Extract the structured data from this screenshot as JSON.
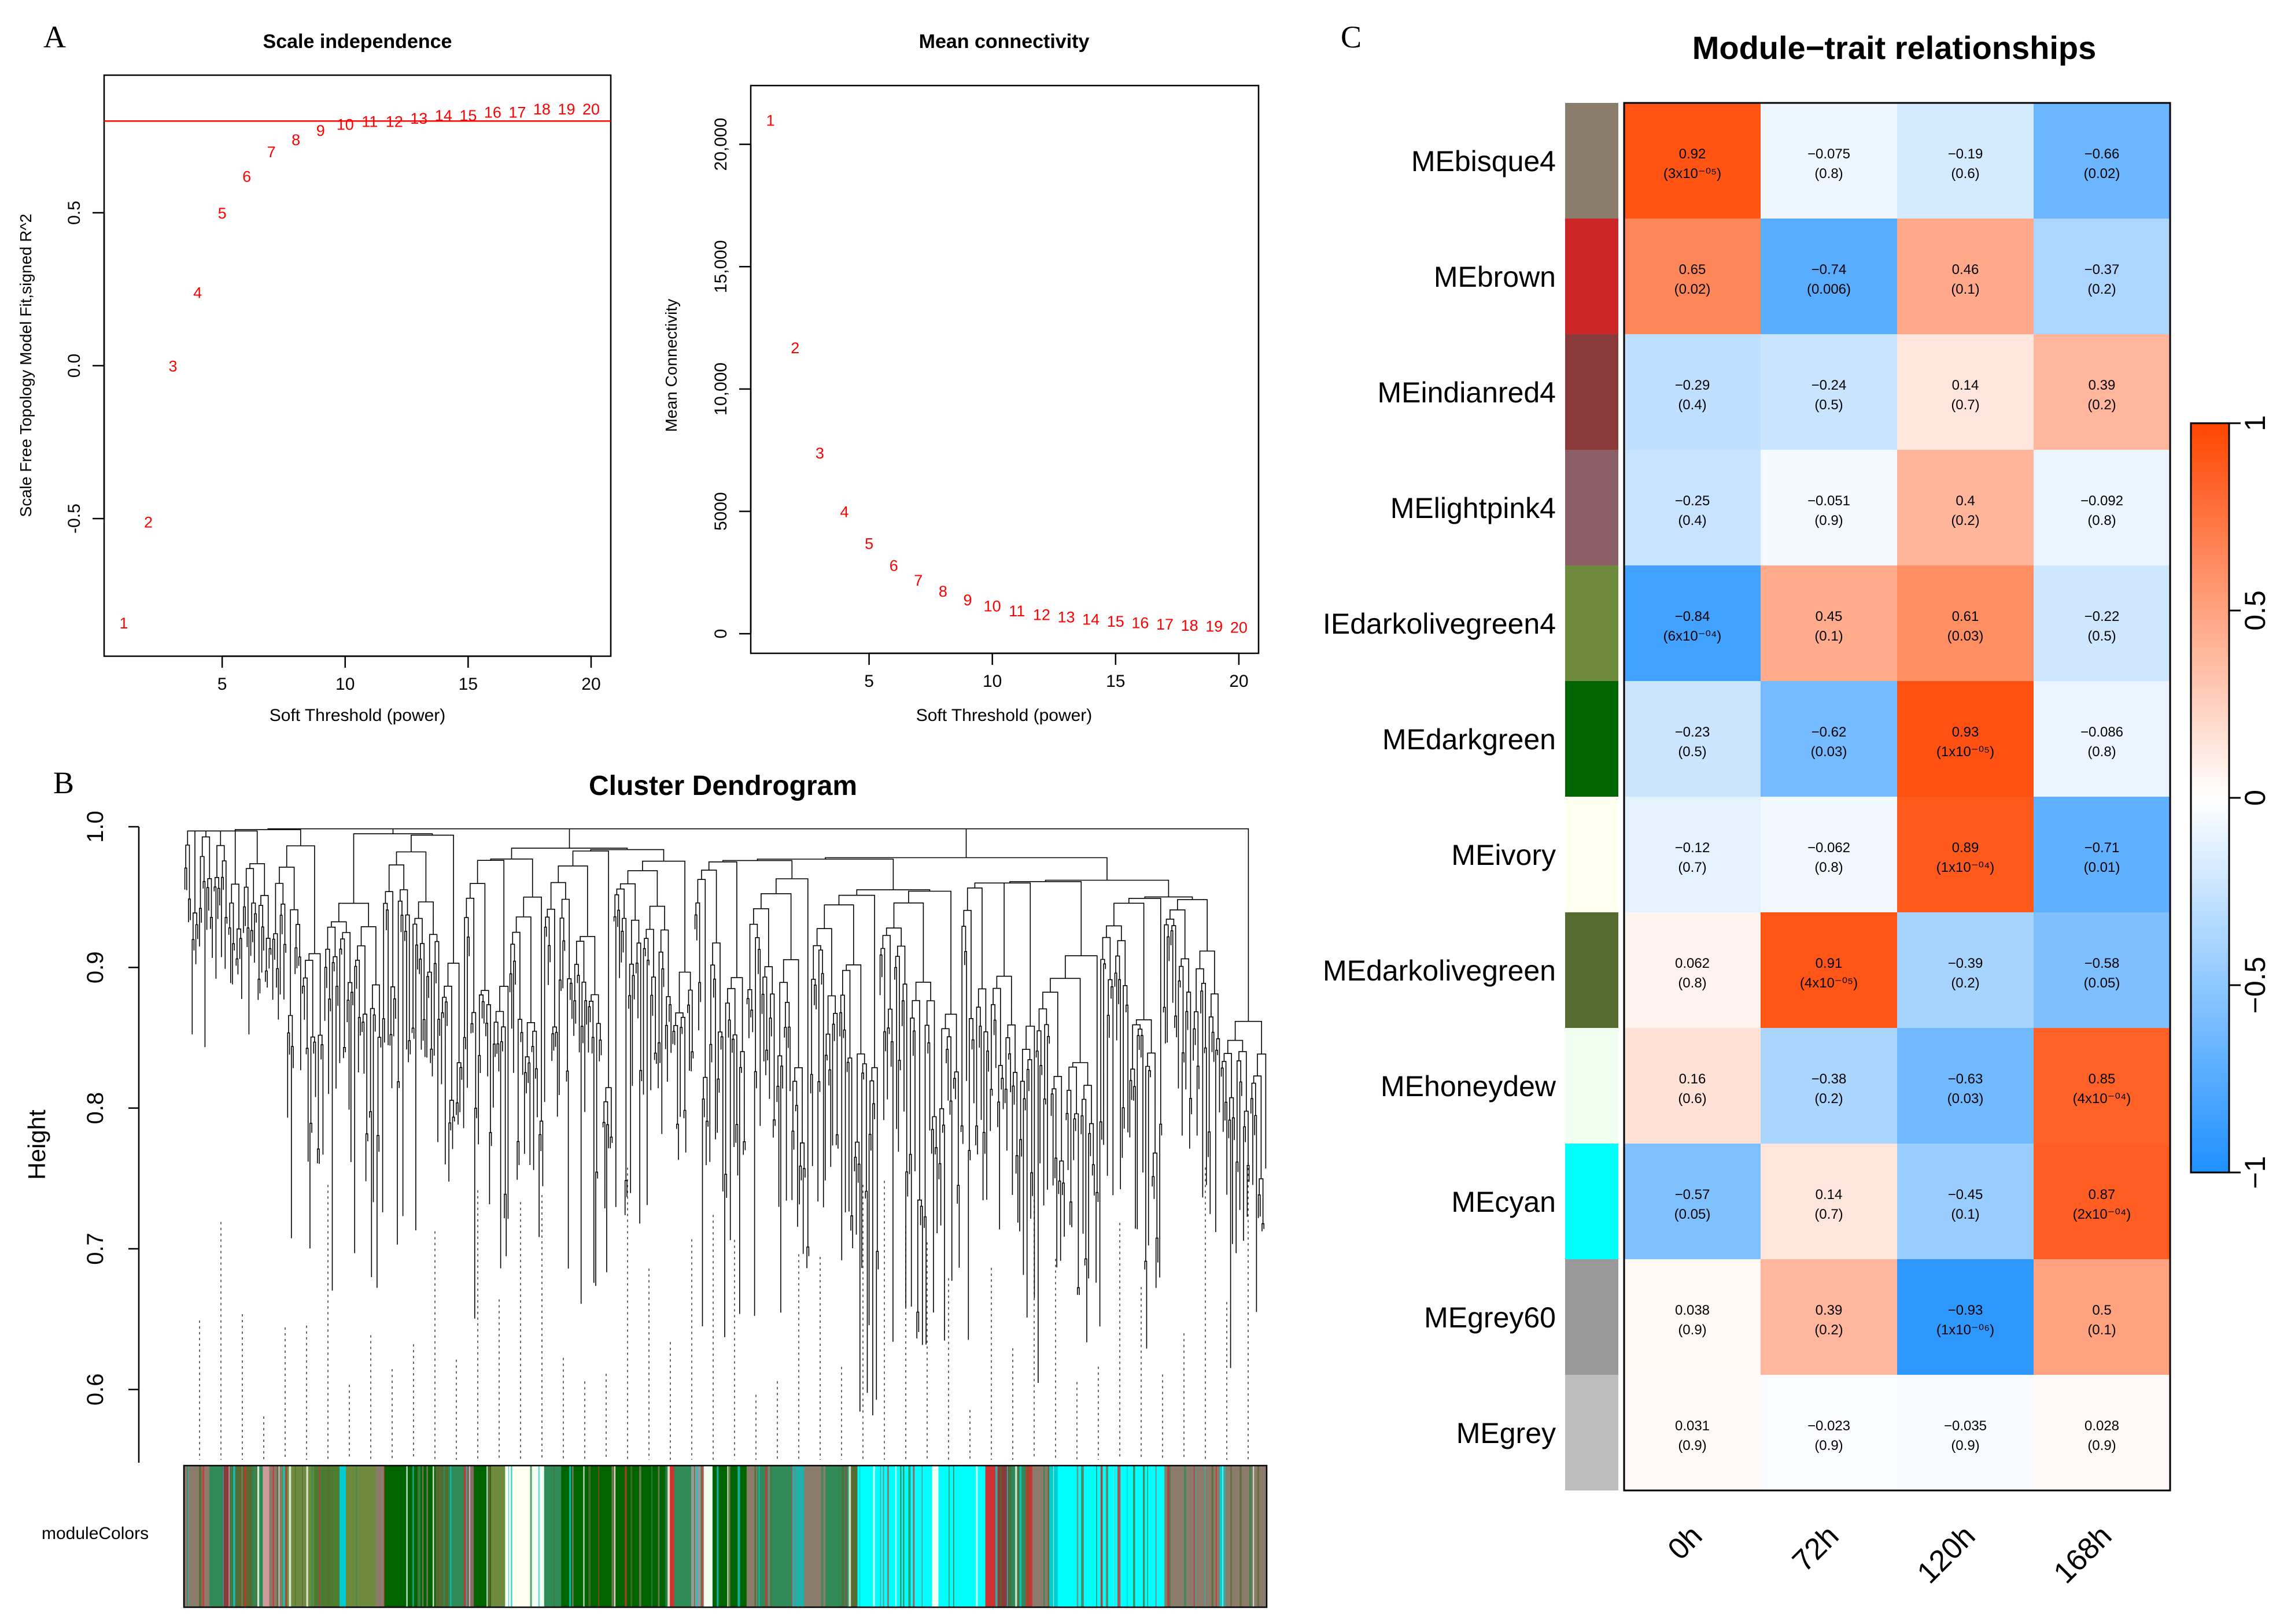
{
  "panel_labels": [
    "A",
    "B",
    "C"
  ],
  "chart_data": [
    {
      "type": "scatter",
      "title": "Scale independence",
      "xlabel": "Soft Threshold (power)",
      "ylabel": "Scale Free Topology Model Fit,signed R^2",
      "xlim": [
        0.2,
        20.8
      ],
      "ylim": [
        -0.95,
        0.95
      ],
      "xticks": [
        5,
        10,
        15,
        20
      ],
      "xtick_labels": [
        "5",
        "10",
        "15",
        "20"
      ],
      "yticks": [
        -0.5,
        0,
        0.5
      ],
      "ytick_labels": [
        "-0.5",
        "0.0",
        "0.5"
      ],
      "hline": 0.8,
      "x": [
        1,
        2,
        3,
        4,
        5,
        6,
        7,
        8,
        9,
        10,
        11,
        12,
        13,
        14,
        15,
        16,
        17,
        18,
        19,
        20
      ],
      "y": [
        -0.84,
        -0.51,
        0.0,
        0.24,
        0.5,
        0.62,
        0.7,
        0.74,
        0.77,
        0.79,
        0.8,
        0.8,
        0.81,
        0.82,
        0.82,
        0.83,
        0.83,
        0.84,
        0.84,
        0.84
      ],
      "point_labels": [
        "1",
        "2",
        "3",
        "4",
        "5",
        "6",
        "7",
        "8",
        "9",
        "10",
        "11",
        "12",
        "13",
        "14",
        "15",
        "16",
        "17",
        "18",
        "19",
        "20"
      ]
    },
    {
      "type": "scatter",
      "title": "Mean connectivity",
      "xlabel": "Soft Threshold (power)",
      "ylabel": "Mean Connectivity",
      "xlim": [
        0.2,
        20.8
      ],
      "ylim": [
        -800,
        22400
      ],
      "xticks": [
        5,
        10,
        15,
        20
      ],
      "xtick_labels": [
        "5",
        "10",
        "15",
        "20"
      ],
      "yticks": [
        0,
        5000,
        10000,
        15000,
        20000
      ],
      "ytick_labels": [
        "0",
        "5000",
        "10,000",
        "15,000",
        "20,000"
      ],
      "x": [
        1,
        2,
        3,
        4,
        5,
        6,
        7,
        8,
        9,
        10,
        11,
        12,
        13,
        14,
        15,
        16,
        17,
        18,
        19,
        20
      ],
      "y": [
        21000,
        11700,
        7400,
        5000,
        3700,
        2800,
        2200,
        1750,
        1400,
        1150,
        950,
        800,
        700,
        600,
        520,
        460,
        400,
        360,
        320,
        280
      ],
      "point_labels": [
        "1",
        "2",
        "3",
        "4",
        "5",
        "6",
        "7",
        "8",
        "9",
        "10",
        "11",
        "12",
        "13",
        "14",
        "15",
        "16",
        "17",
        "18",
        "19",
        "20"
      ]
    },
    {
      "type": "dendrogram",
      "title": "Cluster Dendrogram",
      "ylabel": "Height",
      "ylim": [
        0.55,
        1.0
      ],
      "yticks": [
        0.6,
        0.7,
        0.8,
        0.9,
        1.0
      ],
      "ytick_labels": [
        "0.6",
        "0.7",
        "0.8",
        "0.9",
        "1.0"
      ],
      "color_bar_label": "moduleColors",
      "color_bar_segments": [
        {
          "color": "#8B7B6A",
          "w": 1.2
        },
        {
          "color": "#2E8B57",
          "w": 0.6
        },
        {
          "color": "#8B3A3A",
          "w": 0.4
        },
        {
          "color": "#556B2F",
          "w": 1.0
        },
        {
          "color": "#2E8B57",
          "w": 0.5
        },
        {
          "color": "#CD9B9B",
          "w": 0.3
        },
        {
          "color": "#8B7B6A",
          "w": 0.6
        },
        {
          "color": "#6E8B3D",
          "w": 1.5
        },
        {
          "color": "#4E7C2E",
          "w": 1.2
        },
        {
          "color": "#00CED1",
          "w": 0.3
        },
        {
          "color": "#6E8B3D",
          "w": 1.4
        },
        {
          "color": "#8B7B6A",
          "w": 0.4
        },
        {
          "color": "#006400",
          "w": 2.4
        },
        {
          "color": "#556B2F",
          "w": 0.6
        },
        {
          "color": "#2E8B57",
          "w": 0.8
        },
        {
          "color": "#8B6969",
          "w": 0.4
        },
        {
          "color": "#006400",
          "w": 0.8
        },
        {
          "color": "#6E8B3D",
          "w": 0.7
        },
        {
          "color": "#FFFFF0",
          "w": 1.2
        },
        {
          "color": "#F0FFF0",
          "w": 0.6
        },
        {
          "color": "#2E8B57",
          "w": 0.8
        },
        {
          "color": "#006400",
          "w": 5.0
        },
        {
          "color": "#CD3333",
          "w": 0.3
        },
        {
          "color": "#2E8B57",
          "w": 0.8
        },
        {
          "color": "#999999",
          "w": 0.6
        },
        {
          "color": "#F0FFF0",
          "w": 0.4
        },
        {
          "color": "#006400",
          "w": 1.6
        },
        {
          "color": "#8B7B6A",
          "w": 0.5
        },
        {
          "color": "#2E8B57",
          "w": 1.6
        },
        {
          "color": "#20B2AA",
          "w": 0.6
        },
        {
          "color": "#8B7B6A",
          "w": 1.0
        },
        {
          "color": "#2E8B57",
          "w": 1.0
        },
        {
          "color": "#556B2F",
          "w": 0.5
        },
        {
          "color": "#00FFFF",
          "w": 3.5
        },
        {
          "color": "#F0FFF0",
          "w": 0.3
        },
        {
          "color": "#00FFFF",
          "w": 2.2
        },
        {
          "color": "#CD3333",
          "w": 0.6
        },
        {
          "color": "#8B3A3A",
          "w": 0.5
        },
        {
          "color": "#2E8B57",
          "w": 0.8
        },
        {
          "color": "#CD3333",
          "w": 0.3
        },
        {
          "color": "#8B7B6A",
          "w": 0.8
        },
        {
          "color": "#00CED1",
          "w": 0.4
        },
        {
          "color": "#00FFFF",
          "w": 5.0
        },
        {
          "color": "#8B7B6A",
          "w": 2.6
        },
        {
          "color": "#00CED1",
          "w": 0.2
        },
        {
          "color": "#8B7B6A",
          "w": 2.0
        }
      ]
    },
    {
      "type": "heatmap",
      "title": "Module−trait relationships",
      "columns": [
        "0h",
        "72h",
        "120h",
        "168h"
      ],
      "rows": [
        "MEbisque4",
        "MEbrown",
        "MEindianred4",
        "MElightpink4",
        "IEdarkolivegreen4",
        "MEdarkgreen",
        "MEivory",
        "MEdarkolivegreen",
        "MEhoneydew",
        "MEcyan",
        "MEgrey60",
        "MEgrey"
      ],
      "row_colors": [
        "#8B7D6B",
        "#CD2626",
        "#8B3A3A",
        "#8B5F65",
        "#6E8B3D",
        "#006400",
        "#FFFFF0",
        "#556B2F",
        "#F0FFF0",
        "#00FFFF",
        "#999999",
        "#BEBEBE"
      ],
      "values": [
        [
          0.92,
          -0.075,
          -0.19,
          -0.66
        ],
        [
          0.65,
          -0.74,
          0.46,
          -0.37
        ],
        [
          -0.29,
          -0.24,
          0.14,
          0.39
        ],
        [
          -0.25,
          -0.051,
          0.4,
          -0.092
        ],
        [
          -0.84,
          0.45,
          0.61,
          -0.22
        ],
        [
          -0.23,
          -0.62,
          0.93,
          -0.086
        ],
        [
          -0.12,
          -0.062,
          0.89,
          -0.71
        ],
        [
          0.062,
          0.91,
          -0.39,
          -0.58
        ],
        [
          0.16,
          -0.38,
          -0.63,
          0.85
        ],
        [
          -0.57,
          0.14,
          -0.45,
          0.87
        ],
        [
          0.038,
          0.39,
          -0.93,
          0.5
        ],
        [
          0.031,
          -0.023,
          -0.035,
          0.028
        ]
      ],
      "cell_text": [
        [
          "0.92",
          "−0.075",
          "−0.19",
          "−0.66"
        ],
        [
          "0.65",
          "−0.74",
          "0.46",
          "−0.37"
        ],
        [
          "−0.29",
          "−0.24",
          "0.14",
          "0.39"
        ],
        [
          "−0.25",
          "−0.051",
          "0.4",
          "−0.092"
        ],
        [
          "−0.84",
          "0.45",
          "0.61",
          "−0.22"
        ],
        [
          "−0.23",
          "−0.62",
          "0.93",
          "−0.086"
        ],
        [
          "−0.12",
          "−0.062",
          "0.89",
          "−0.71"
        ],
        [
          "0.062",
          "0.91",
          "−0.39",
          "−0.58"
        ],
        [
          "0.16",
          "−0.38",
          "−0.63",
          "0.85"
        ],
        [
          "−0.57",
          "0.14",
          "−0.45",
          "0.87"
        ],
        [
          "0.038",
          "0.39",
          "−0.93",
          "0.5"
        ],
        [
          "0.031",
          "−0.023",
          "−0.035",
          "0.028"
        ]
      ],
      "pvalues": [
        [
          "(3x10⁻⁰⁵)",
          "(0.8)",
          "(0.6)",
          "(0.02)"
        ],
        [
          "(0.02)",
          "(0.006)",
          "(0.1)",
          "(0.2)"
        ],
        [
          "(0.4)",
          "(0.5)",
          "(0.7)",
          "(0.2)"
        ],
        [
          "(0.4)",
          "(0.9)",
          "(0.2)",
          "(0.8)"
        ],
        [
          "(6x10⁻⁰⁴)",
          "(0.1)",
          "(0.03)",
          "(0.5)"
        ],
        [
          "(0.5)",
          "(0.03)",
          "(1x10⁻⁰⁵)",
          "(0.8)"
        ],
        [
          "(0.7)",
          "(0.8)",
          "(1x10⁻⁰⁴)",
          "(0.01)"
        ],
        [
          "(0.8)",
          "(4x10⁻⁰⁵)",
          "(0.2)",
          "(0.05)"
        ],
        [
          "(0.6)",
          "(0.2)",
          "(0.03)",
          "(4x10⁻⁰⁴)"
        ],
        [
          "(0.05)",
          "(0.7)",
          "(0.1)",
          "(2x10⁻⁰⁴)"
        ],
        [
          "(0.9)",
          "(0.2)",
          "(1x10⁻⁰⁶)",
          "(0.1)"
        ],
        [
          "(0.9)",
          "(0.9)",
          "(0.9)",
          "(0.9)"
        ]
      ],
      "legend_ticks": [
        1,
        0.5,
        0,
        -0.5,
        -1
      ],
      "legend_tick_labels": [
        "1",
        "0.5",
        "0",
        "−0.5",
        "−1"
      ],
      "color_scale": {
        "neg": "#1E90FF",
        "mid": "#FFFFFF",
        "pos": "#FF4500"
      }
    }
  ]
}
